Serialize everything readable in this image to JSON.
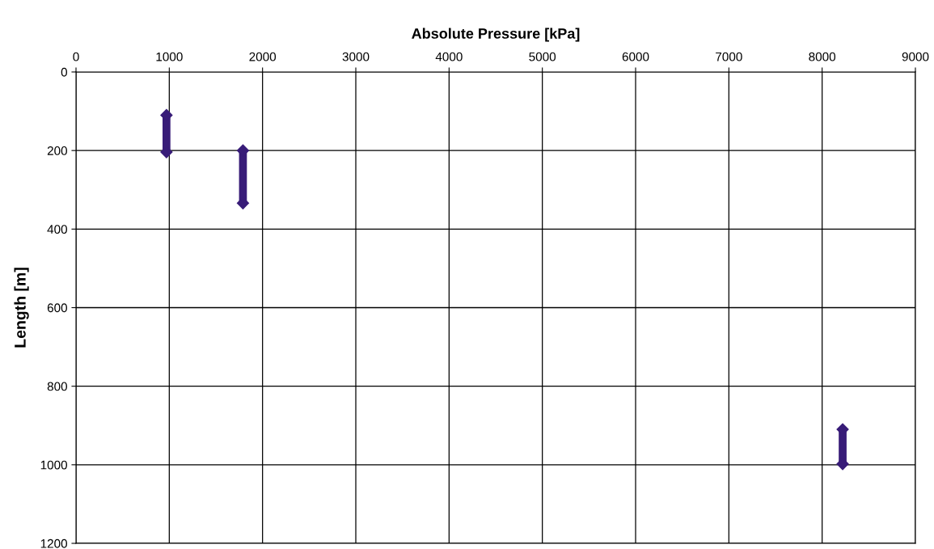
{
  "chart_data": {
    "type": "line",
    "xlabel": "Absolute Pressure [kPa]",
    "ylabel": "Length [m]",
    "xlim": [
      0,
      9000
    ],
    "xticks": [
      0,
      1000,
      2000,
      3000,
      4000,
      5000,
      6000,
      7000,
      8000,
      9000
    ],
    "ylim": [
      1200,
      0
    ],
    "yticks": [
      0,
      200,
      400,
      600,
      800,
      1000,
      1200
    ],
    "grid": true,
    "marker": "diamond",
    "line_style": "solid",
    "series": [
      {
        "color": "#381c78",
        "x": [
          970,
          970
        ],
        "values": [
          110,
          204
        ]
      },
      {
        "color": "#381c78",
        "x": [
          1790,
          1790
        ],
        "values": [
          200,
          334
        ]
      },
      {
        "color": "#381c78",
        "x": [
          8220,
          8220
        ],
        "values": [
          910,
          998
        ]
      }
    ]
  }
}
